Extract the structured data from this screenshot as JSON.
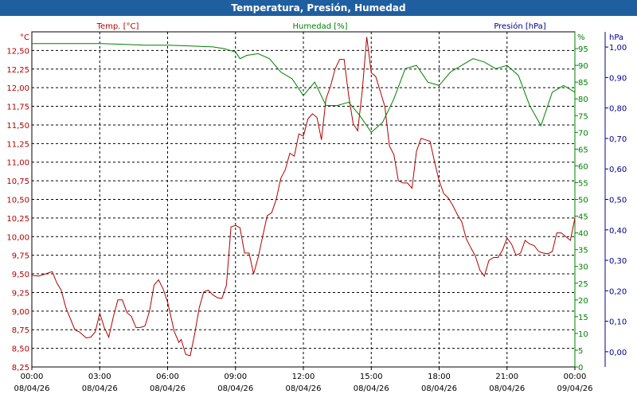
{
  "window": {
    "title": "Temperatura, Presión, Humedad"
  },
  "colors": {
    "temperature": "#b00000",
    "humidity": "#008000",
    "pressure": "#00008b",
    "titlebar": "#1f5f9f"
  },
  "chart_data": {
    "type": "line",
    "grid": true,
    "legend": "top",
    "axes": {
      "temperature": {
        "label": "Temp. [°C]",
        "unit": "°C",
        "range": [
          8.25,
          12.75
        ],
        "ticks": [
          "8,25",
          "8,50",
          "8,75",
          "9,00",
          "9,25",
          "9,50",
          "9,75",
          "10,00",
          "10,25",
          "10,50",
          "10,75",
          "11,00",
          "11,25",
          "11,50",
          "11,75",
          "12,00",
          "12,25",
          "12,50"
        ]
      },
      "humidity": {
        "label": "Humedad [%]",
        "unit": "%",
        "range": [
          0,
          100
        ],
        "ticks": [
          "0",
          "5",
          "10",
          "15",
          "20",
          "25",
          "30",
          "35",
          "40",
          "45",
          "50",
          "55",
          "60",
          "65",
          "70",
          "75",
          "80",
          "85",
          "90",
          "95"
        ]
      },
      "pressure": {
        "label": "Presión [hPa]",
        "unit": "hPa",
        "range": [
          -0.05,
          1.05
        ],
        "ticks": [
          "0,00",
          "0,10",
          "0,20",
          "0,30",
          "0,40",
          "0,50",
          "0,60",
          "0,70",
          "0,80",
          "0,90",
          "1,00"
        ]
      },
      "x": {
        "range_hours": [
          0,
          24
        ],
        "ticks": [
          {
            "time": "00:00",
            "date": "08/04/26"
          },
          {
            "time": "03:00",
            "date": "08/04/26"
          },
          {
            "time": "06:00",
            "date": "08/04/26"
          },
          {
            "time": "09:00",
            "date": "08/04/26"
          },
          {
            "time": "12:00",
            "date": "08/04/26"
          },
          {
            "time": "15:00",
            "date": "08/04/26"
          },
          {
            "time": "18:00",
            "date": "08/04/26"
          },
          {
            "time": "21:00",
            "date": "08/04/26"
          },
          {
            "time": "00:00",
            "date": "09/04/26"
          }
        ]
      }
    },
    "series": [
      {
        "name": "Temp. [°C]",
        "axis": "temperature",
        "x": [
          0,
          0.3,
          0.6,
          0.9,
          1.1,
          1.3,
          1.5,
          1.7,
          1.9,
          2.1,
          2.4,
          2.6,
          2.8,
          3.0,
          3.2,
          3.4,
          3.6,
          3.8,
          4.0,
          4.2,
          4.4,
          4.6,
          4.8,
          5.0,
          5.2,
          5.4,
          5.6,
          5.8,
          6.0,
          6.3,
          6.5,
          6.6,
          6.8,
          7.0,
          7.2,
          7.4,
          7.6,
          7.8,
          8.0,
          8.2,
          8.4,
          8.6,
          8.8,
          9.0,
          9.2,
          9.4,
          9.6,
          9.8,
          10.0,
          10.2,
          10.4,
          10.6,
          10.8,
          11.0,
          11.2,
          11.4,
          11.6,
          11.8,
          12.0,
          12.2,
          12.4,
          12.6,
          12.8,
          13.0,
          13.2,
          13.4,
          13.6,
          13.8,
          14.0,
          14.2,
          14.4,
          14.6,
          14.8,
          15.0,
          15.2,
          15.4,
          15.6,
          15.8,
          16.0,
          16.2,
          16.4,
          16.6,
          16.8,
          17.0,
          17.2,
          17.4,
          17.6,
          17.8,
          18.0,
          18.2,
          18.4,
          18.6,
          18.8,
          19.0,
          19.2,
          19.4,
          19.6,
          19.8,
          20.0,
          20.2,
          20.4,
          20.6,
          20.8,
          21.0,
          21.2,
          21.4,
          21.6,
          21.8,
          22.0,
          22.2,
          22.4,
          22.6,
          22.8,
          23.0,
          23.2,
          23.4,
          23.6,
          23.8,
          24.0
        ],
        "y": [
          9.48,
          9.47,
          9.5,
          9.53,
          9.38,
          9.28,
          9.05,
          8.9,
          8.75,
          8.72,
          8.64,
          8.65,
          8.72,
          8.97,
          8.78,
          8.65,
          8.92,
          9.15,
          9.15,
          8.98,
          8.93,
          8.78,
          8.78,
          8.8,
          9.0,
          9.35,
          9.42,
          9.3,
          9.12,
          8.72,
          8.58,
          8.62,
          8.42,
          8.4,
          8.7,
          9.05,
          9.26,
          9.28,
          9.22,
          9.18,
          9.17,
          9.35,
          10.13,
          10.15,
          10.12,
          9.78,
          9.78,
          9.5,
          9.72,
          10.0,
          10.28,
          10.32,
          10.5,
          10.78,
          10.9,
          11.12,
          11.08,
          11.38,
          11.35,
          11.58,
          11.65,
          11.6,
          11.3,
          11.85,
          12.02,
          12.25,
          12.38,
          12.38,
          11.9,
          11.52,
          11.42,
          11.95,
          12.68,
          12.2,
          12.15,
          11.95,
          11.75,
          11.22,
          11.1,
          10.75,
          10.72,
          10.72,
          10.65,
          11.15,
          11.32,
          11.3,
          11.28,
          11.0,
          10.75,
          10.58,
          10.52,
          10.42,
          10.3,
          10.2,
          9.97,
          9.85,
          9.74,
          9.55,
          9.47,
          9.68,
          9.72,
          9.72,
          9.82,
          9.98,
          9.9,
          9.75,
          9.78,
          9.95,
          9.9,
          9.88,
          9.8,
          9.78,
          9.77,
          9.8,
          10.05,
          10.05,
          10.0,
          9.95,
          10.25
        ]
      },
      {
        "name": "Humedad [%]",
        "axis": "humidity",
        "x": [
          0,
          1,
          2,
          3,
          4,
          5,
          6,
          7,
          8,
          8.5,
          9,
          9.2,
          9.5,
          10,
          10.5,
          11,
          11.5,
          12,
          12.5,
          13,
          13.5,
          14,
          14.5,
          15,
          15.5,
          16,
          16.5,
          17,
          17.5,
          18,
          18.5,
          19,
          19.5,
          20,
          20.5,
          21,
          21.5,
          22,
          22.5,
          23,
          23.5,
          24
        ],
        "y": [
          96.5,
          96.5,
          96.5,
          96.5,
          96.3,
          96,
          96,
          95.8,
          95.5,
          95,
          94,
          92,
          93,
          93.5,
          92,
          88,
          86,
          81,
          85,
          78,
          78,
          79,
          75,
          70,
          73,
          80,
          89,
          90,
          85,
          84,
          88,
          90,
          92,
          91,
          89,
          90,
          87,
          78,
          72,
          82,
          84,
          82
        ]
      },
      {
        "name": "Presión [hPa]",
        "axis": "pressure",
        "x": [],
        "y": []
      }
    ]
  }
}
